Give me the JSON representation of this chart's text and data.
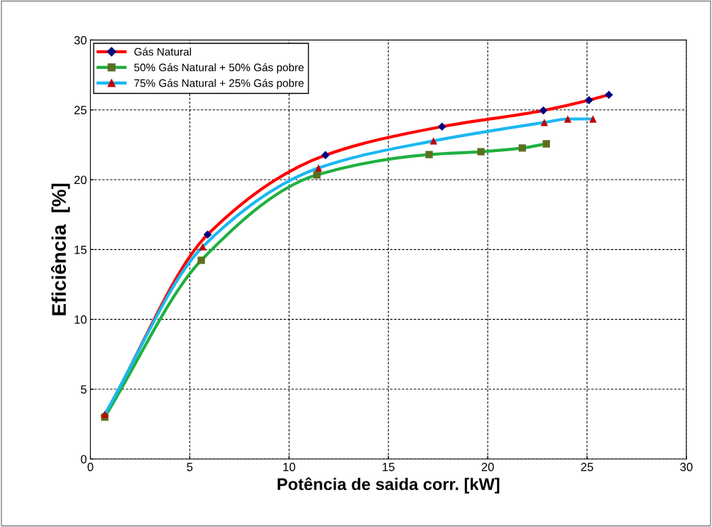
{
  "chart_data": {
    "type": "line",
    "xlabel": "Potência de saida corr. [kW]",
    "ylabel": "Eficiência  [%]",
    "xlim": [
      0,
      30
    ],
    "ylim": [
      0,
      30
    ],
    "xticks": [
      0,
      5,
      10,
      15,
      20,
      25,
      30
    ],
    "yticks": [
      0,
      5,
      10,
      15,
      20,
      25,
      30
    ],
    "grid": true,
    "legend": "top left",
    "line_style": "solid",
    "series": [
      {
        "name": "Gás Natural",
        "color": "#ff0000",
        "marker": "diamond",
        "colors": [
          "#000080",
          "#000080",
          "#000080",
          "#000080",
          "#000080",
          "#000080",
          "#000080"
        ],
        "x": [
          0.72,
          5.9,
          11.83,
          17.7,
          22.8,
          25.1,
          26.1
        ],
        "values": [
          3.1,
          16.07,
          21.76,
          23.8,
          24.96,
          25.7,
          26.08
        ]
      },
      {
        "name": "50% Gás Natural + 50% Gás pobre",
        "color": "#1fb040",
        "marker": "square",
        "colors": [
          "#5a7020",
          "#5a7020",
          "#5a7020",
          "#5a7020",
          "#5a7020",
          "#5a7020",
          "#5a7020"
        ],
        "x": [
          0.72,
          5.58,
          11.4,
          17.05,
          19.66,
          21.74,
          22.95
        ],
        "values": [
          3.0,
          14.23,
          20.34,
          21.8,
          22.0,
          22.27,
          22.57
        ]
      },
      {
        "name": "75% Gás Natural + 25% Gás pobre",
        "color": "#1ab8f0",
        "marker": "triangle",
        "colors": [
          "#c00000",
          "#c00000",
          "#c00000",
          "#c00000",
          "#c00000",
          "#c00000",
          "#c00000"
        ],
        "x": [
          0.72,
          5.65,
          11.48,
          17.27,
          22.85,
          24.03,
          25.3
        ],
        "values": [
          3.2,
          15.2,
          20.84,
          22.78,
          24.1,
          24.35,
          24.35
        ]
      }
    ]
  }
}
